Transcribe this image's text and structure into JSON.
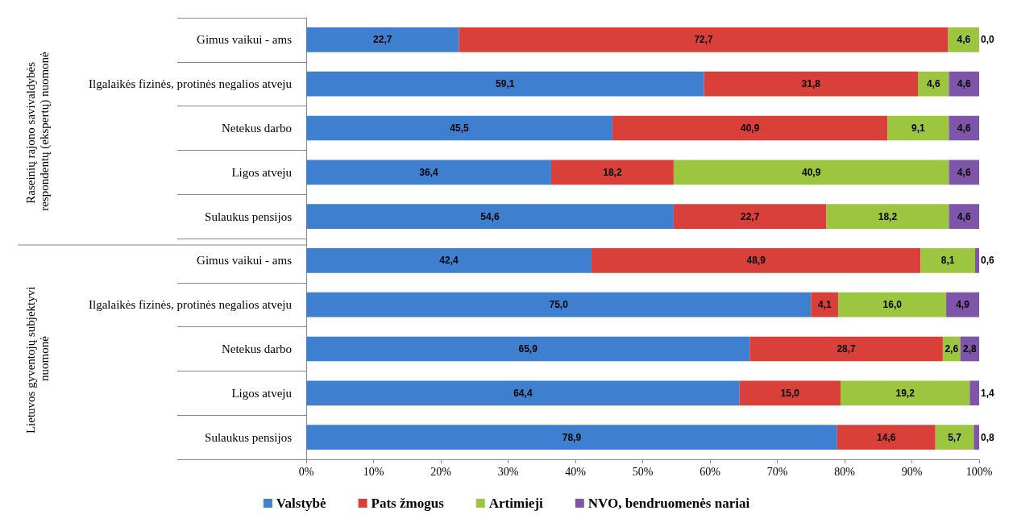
{
  "chart_data": {
    "type": "bar",
    "orientation": "horizontal",
    "stacked": true,
    "legend": "bottom",
    "categories": [
      "Gimus vaikui - ams",
      "Ilgalaikės fizinės, protinės negalios atveju",
      "Netekus darbo",
      "Ligos atveju",
      "Sulaukus pensijos",
      "Gimus vaikui - ams",
      "Ilgalaikės fizinės, protinės negalios atveju",
      "Netekus darbo",
      "Ligos atveju",
      "Sulaukus pensijos"
    ],
    "annotations": [
      "Raseinių rajono savivaldybės respondentų (ekspertų) nuomonė",
      "Lietuvos gyventojų subjektyvi nuomonė"
    ],
    "xlim": [
      0,
      100
    ],
    "xticks": [
      {
        "value": 0,
        "label": "0%"
      },
      {
        "value": 10,
        "label": "10%"
      },
      {
        "value": 20,
        "label": "20%"
      },
      {
        "value": 30,
        "label": "30%"
      },
      {
        "value": 40,
        "label": "40%"
      },
      {
        "value": 50,
        "label": "50%"
      },
      {
        "value": 60,
        "label": "60%"
      },
      {
        "value": 70,
        "label": "70%"
      },
      {
        "value": 80,
        "label": "80%"
      },
      {
        "value": 90,
        "label": "90%"
      },
      {
        "value": 100,
        "label": "100%"
      }
    ],
    "series": [
      {
        "name": "Valstybė",
        "color": "#3f7fcf",
        "values": [
          22.7,
          59.1,
          45.5,
          36.4,
          54.6,
          42.4,
          75.0,
          65.9,
          64.4,
          78.9
        ],
        "value_labels": [
          "22,7",
          "59,1",
          "45,5",
          "36,4",
          "54,6",
          "42,4",
          "75,0",
          "65,9",
          "64,4",
          "78,9"
        ]
      },
      {
        "name": "Pats žmogus",
        "color": "#d9403a",
        "values": [
          72.7,
          31.8,
          40.9,
          18.2,
          22.7,
          48.9,
          4.1,
          28.7,
          15.0,
          14.6
        ],
        "value_labels": [
          "72,7",
          "31,8",
          "40,9",
          "18,2",
          "22,7",
          "48,9",
          "4,1",
          "28,7",
          "15,0",
          "14,6"
        ]
      },
      {
        "name": "Artimieji",
        "color": "#9cc63f",
        "values": [
          4.6,
          4.6,
          9.1,
          40.9,
          18.2,
          8.1,
          16.0,
          2.6,
          19.2,
          5.7
        ],
        "value_labels": [
          "4,6",
          "4,6",
          "9,1",
          "40,9",
          "18,2",
          "8,1",
          "16,0",
          "2,6",
          "19,2",
          "5,7"
        ]
      },
      {
        "name": "NVO, bendruomenės nariai",
        "color": "#7e55a8",
        "values": [
          0.0,
          4.6,
          4.6,
          4.6,
          4.6,
          0.6,
          4.9,
          2.8,
          1.4,
          0.8
        ],
        "value_labels": [
          "0,0",
          "4,6",
          "4,6",
          "4,6",
          "4,6",
          "0,6",
          "4,9",
          "2,8",
          "1,4",
          "0,8"
        ]
      }
    ]
  }
}
